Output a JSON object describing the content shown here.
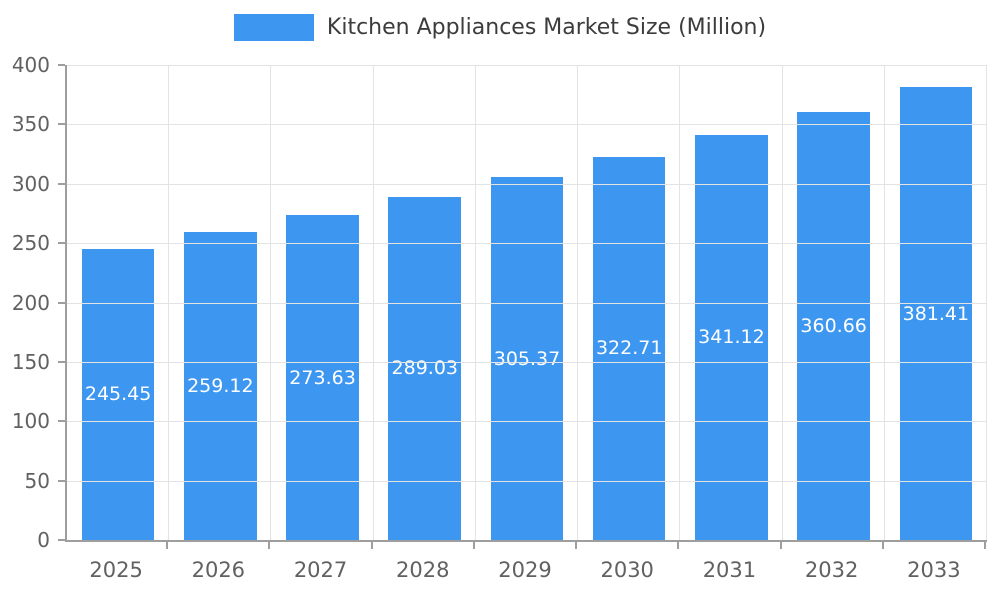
{
  "chart_data": {
    "type": "bar",
    "title": "Kitchen Appliances Market Size (Million)",
    "categories": [
      "2025",
      "2026",
      "2027",
      "2028",
      "2029",
      "2030",
      "2031",
      "2032",
      "2033"
    ],
    "values": [
      245.45,
      259.12,
      273.63,
      289.03,
      305.37,
      322.71,
      341.12,
      360.66,
      381.41
    ],
    "value_labels": [
      "245.45",
      "259.12",
      "273.63",
      "289.03",
      "305.37",
      "322.71",
      "341.12",
      "360.66",
      "381.41"
    ],
    "ylim": [
      0,
      400
    ],
    "yticks": [
      0,
      50,
      100,
      150,
      200,
      250,
      300,
      350,
      400
    ],
    "bar_color": "#3d96f0",
    "value_label_color": "#ffffff",
    "grid": true,
    "legend_position": "top",
    "xlabel": "",
    "ylabel": ""
  }
}
